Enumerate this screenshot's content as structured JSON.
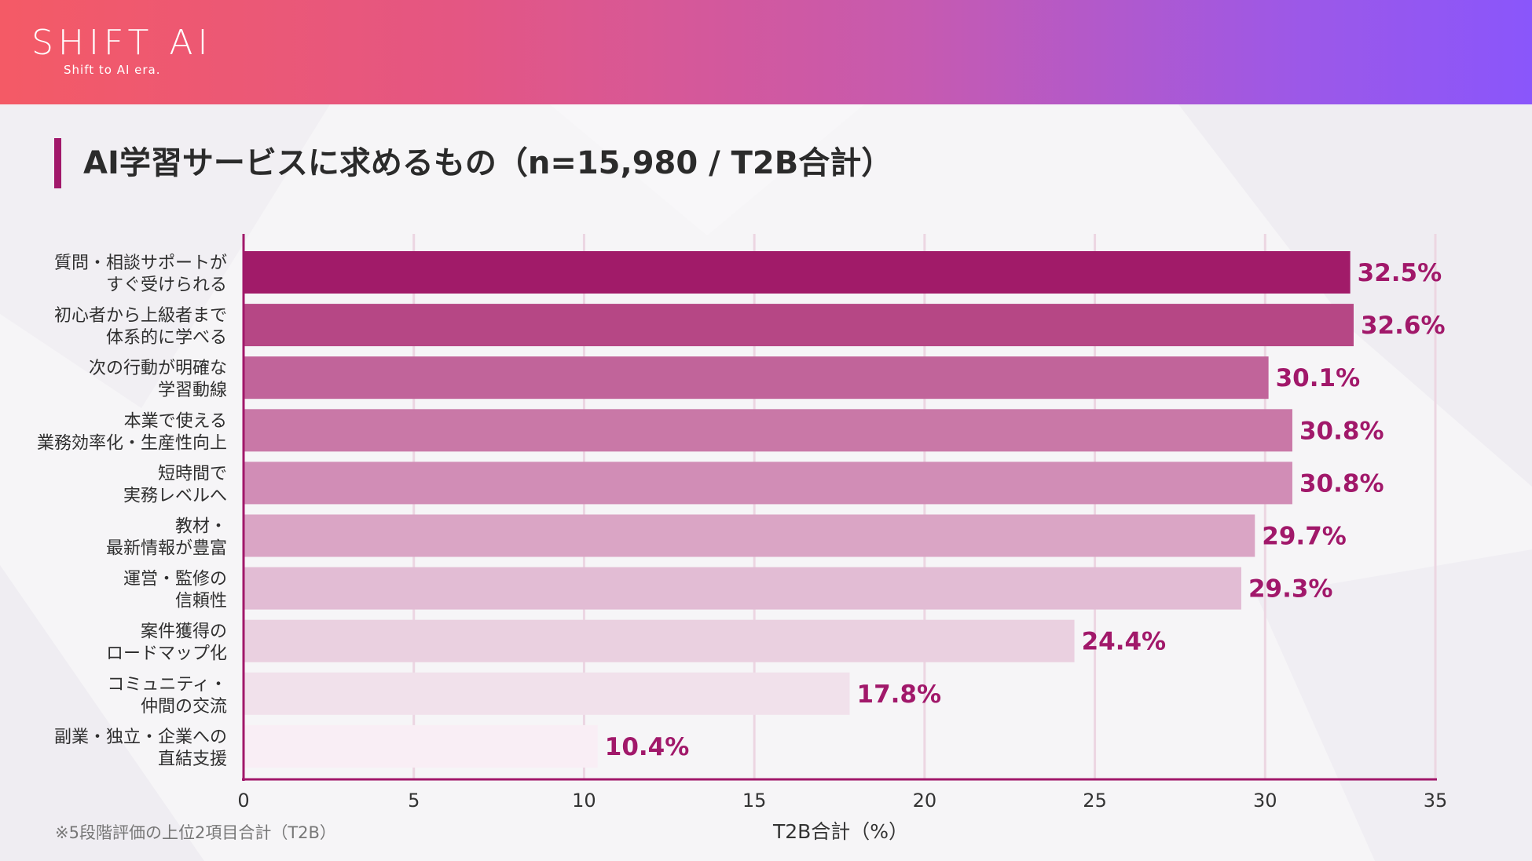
{
  "header": {
    "logo_text": "SHIFT AI",
    "logo_tagline": "Shift to AI era."
  },
  "title": "AI学習サービスに求めるもの（n=15,980 / T2B合計）",
  "footnote": "※5段階評価の上位2項目合計（T2B）",
  "colors": {
    "accent": "#a1186a",
    "label": "#a1186a",
    "grid": "#ecd6e2",
    "axis": "#a1186a"
  },
  "chart_data": {
    "type": "bar",
    "orientation": "horizontal",
    "categories": [
      [
        "質問・相談サポートが",
        "すぐ受けられる"
      ],
      [
        "初心者から上級者まで",
        "体系的に学べる"
      ],
      [
        "次の行動が明確な",
        "学習動線"
      ],
      [
        "本業で使える",
        "業務効率化・生産性向上"
      ],
      [
        "短時間で",
        "実務レベルへ"
      ],
      [
        "教材・",
        "最新情報が豊富"
      ],
      [
        "運営・監修の",
        "信頼性"
      ],
      [
        "案件獲得の",
        "ロードマップ化"
      ],
      [
        "コミュニティ・",
        "仲間の交流"
      ],
      [
        "副業・独立・企業への",
        "直結支援"
      ]
    ],
    "values": [
      32.5,
      32.6,
      30.1,
      30.8,
      30.8,
      29.7,
      29.3,
      24.4,
      17.8,
      10.4
    ],
    "value_labels": [
      "32.5%",
      "32.6%",
      "30.1%",
      "30.8%",
      "30.8%",
      "29.7%",
      "29.3%",
      "24.4%",
      "17.8%",
      "10.4%"
    ],
    "bar_colors": [
      "#a11b69",
      "#b64785",
      "#c1649a",
      "#c978a7",
      "#d18db6",
      "#daa5c5",
      "#e2bcd4",
      "#ead0e0",
      "#f1e1eb",
      "#f9eef5"
    ],
    "xlim": [
      0,
      35
    ],
    "xticks": [
      0,
      5,
      10,
      15,
      20,
      25,
      30,
      35
    ],
    "xlabel": "T2B合計（%）",
    "grid": true,
    "legend": "none"
  }
}
